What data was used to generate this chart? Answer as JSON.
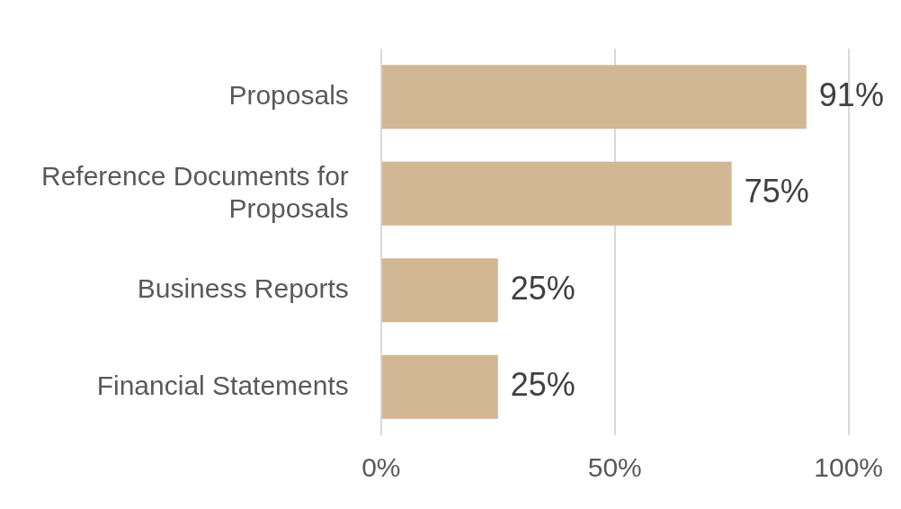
{
  "chart_data": {
    "type": "bar",
    "orientation": "horizontal",
    "categories": [
      "Proposals",
      "Reference Documents for Proposals",
      "Business Reports",
      "Financial Statements"
    ],
    "values": [
      91,
      75,
      25,
      25
    ],
    "value_labels": [
      "91%",
      "75%",
      "25%",
      "25%"
    ],
    "color": "#d2b795",
    "xlim": [
      0,
      100
    ],
    "xticks": [
      {
        "value": 0,
        "label": "0%"
      },
      {
        "value": 50,
        "label": "50%"
      },
      {
        "value": 100,
        "label": "100%"
      }
    ],
    "grid": "x"
  }
}
